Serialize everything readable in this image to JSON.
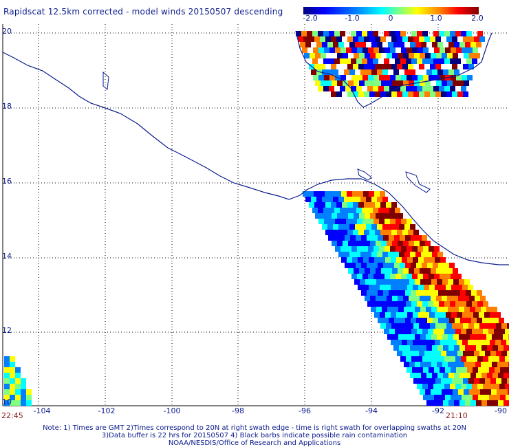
{
  "title": "Rapidscat 12.5km corrected - model winds 20150507 descending",
  "colorbar": {
    "ticks": [
      "-2.0",
      "-1.0",
      "0",
      "1.0",
      "2.0"
    ],
    "colors": [
      "#000080",
      "#0000ff",
      "#0080ff",
      "#00ffff",
      "#80ff80",
      "#ffff00",
      "#ff8000",
      "#ff0000",
      "#800000"
    ]
  },
  "x_axis": {
    "labels": [
      "-104",
      "-102",
      "-100",
      "-98",
      "-96",
      "-94",
      "-92",
      "-90"
    ]
  },
  "y_axis": {
    "labels": [
      "20",
      "18",
      "16",
      "14",
      "12",
      "10"
    ]
  },
  "times": {
    "left": "22:45",
    "right": "21:10"
  },
  "notes": [
    "Note: 1) Times are GMT 2)Times correspond to 20N at right swath edge - time is right swath for overlapping swaths at 20N",
    "3)Data buffer is 22 hrs for 20150507 4) Black barbs indicate possible rain contamination",
    "NOAA/NESDIS/Office of Research and Applications"
  ]
}
